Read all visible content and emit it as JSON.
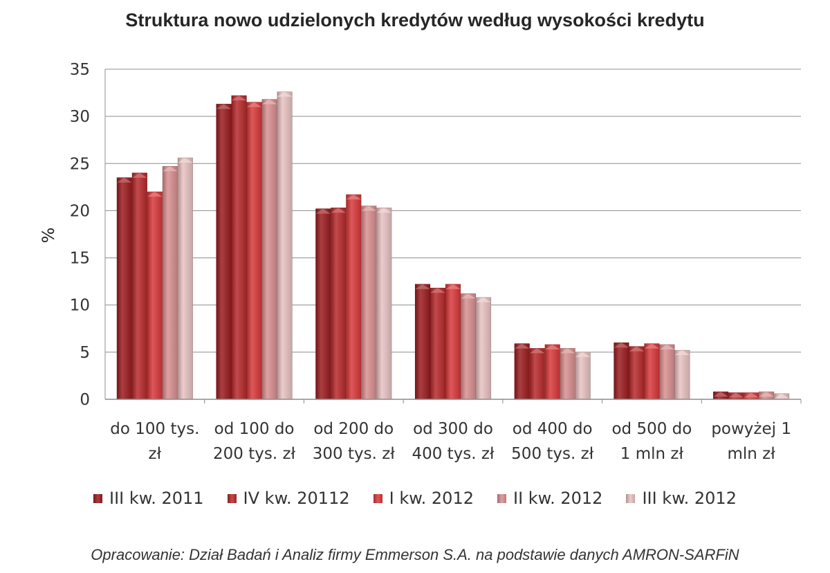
{
  "chart_data": {
    "type": "bar",
    "title": "Struktura nowo udzielonych kredytów według wysokości kredytu",
    "ylabel": "%",
    "xlabel": "",
    "ylim": [
      0,
      35
    ],
    "yticks": [
      0,
      5,
      10,
      15,
      20,
      25,
      30,
      35
    ],
    "grid": true,
    "legend_position": "bottom",
    "categories": [
      [
        "do 100 tys.",
        "zł"
      ],
      [
        "od 100 do",
        "200 tys. zł"
      ],
      [
        "od 200 do",
        "300 tys. zł"
      ],
      [
        "od 300 do",
        "400 tys. zł"
      ],
      [
        "od 400 do",
        "500 tys. zł"
      ],
      [
        "od 500 do",
        "1 mln zł"
      ],
      [
        "powyżej 1",
        "mln zł"
      ]
    ],
    "series": [
      {
        "name": "III kw. 2011",
        "color": "#9b1c1f",
        "values": [
          23.5,
          31.3,
          20.2,
          12.2,
          5.9,
          6.0,
          0.8
        ]
      },
      {
        "name": "IV kw. 20112",
        "color": "#b82a2c",
        "values": [
          24.0,
          32.2,
          20.3,
          11.8,
          5.4,
          5.6,
          0.7
        ]
      },
      {
        "name": "I kw. 2012",
        "color": "#d9393b",
        "values": [
          22.0,
          31.5,
          21.7,
          12.2,
          5.8,
          5.9,
          0.7
        ]
      },
      {
        "name": "II kw. 2012",
        "color": "#d98f90",
        "values": [
          24.7,
          31.8,
          20.5,
          11.2,
          5.4,
          5.8,
          0.8
        ]
      },
      {
        "name": "III kw. 2012",
        "color": "#e9c2c2",
        "values": [
          25.6,
          32.6,
          20.3,
          10.8,
          5.0,
          5.2,
          0.6
        ]
      }
    ]
  },
  "source_note": "Opracowanie: Dział Badań i Analiz firmy Emmerson S.A. na podstawie danych AMRON-SARFiN"
}
